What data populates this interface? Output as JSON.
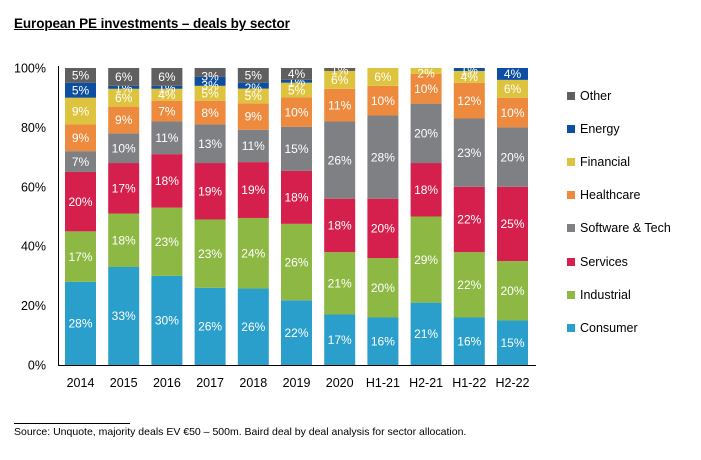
{
  "title": "European PE investments – deals by sector",
  "source": "Source:  Unquote, majority deals EV €50 – 500m.  Baird deal by deal analysis for sector allocation.",
  "chart_data": {
    "type": "bar",
    "stacked": true,
    "title": "European PE investments – deals by sector",
    "xlabel": "",
    "ylabel": "",
    "ylim": [
      0,
      100
    ],
    "yticks": [
      "0%",
      "20%",
      "40%",
      "60%",
      "80%",
      "100%"
    ],
    "ytick_values": [
      0,
      20,
      40,
      60,
      80,
      100
    ],
    "grid": false,
    "legend_position": "right",
    "categories": [
      "2014",
      "2015",
      "2016",
      "2017",
      "2018",
      "2019",
      "2020",
      "H1-21",
      "H2-21",
      "H1-22",
      "H2-22"
    ],
    "series": [
      {
        "name": "Consumer",
        "color": "#2A9FCB",
        "values": [
          28,
          33,
          30,
          26,
          26,
          22,
          17,
          16,
          21,
          16,
          15
        ]
      },
      {
        "name": "Industrial",
        "color": "#8DB843",
        "values": [
          17,
          18,
          23,
          23,
          24,
          26,
          21,
          20,
          29,
          22,
          20
        ]
      },
      {
        "name": "Services",
        "color": "#D51F4C",
        "values": [
          20,
          17,
          18,
          19,
          19,
          18,
          18,
          20,
          18,
          22,
          25
        ]
      },
      {
        "name": "Software & Tech",
        "color": "#7F8083",
        "values": [
          7,
          10,
          11,
          13,
          11,
          15,
          26,
          28,
          20,
          23,
          20
        ]
      },
      {
        "name": "Healthcare",
        "color": "#EE8A3E",
        "values": [
          9,
          9,
          7,
          8,
          9,
          10,
          11,
          10,
          10,
          12,
          10
        ]
      },
      {
        "name": "Financial",
        "color": "#DEC43E",
        "values": [
          9,
          6,
          4,
          5,
          5,
          5,
          6,
          6,
          2,
          4,
          6
        ]
      },
      {
        "name": "Energy",
        "color": "#0B4EA2",
        "values": [
          5,
          1,
          1,
          3,
          2,
          1,
          0,
          0,
          0,
          1,
          4
        ]
      },
      {
        "name": "Other",
        "color": "#5F5F5F",
        "values": [
          5,
          6,
          6,
          3,
          5,
          4,
          1,
          0,
          0,
          0,
          0
        ]
      }
    ],
    "legend_order": [
      "Other",
      "Energy",
      "Financial",
      "Healthcare",
      "Software & Tech",
      "Services",
      "Industrial",
      "Consumer"
    ]
  }
}
